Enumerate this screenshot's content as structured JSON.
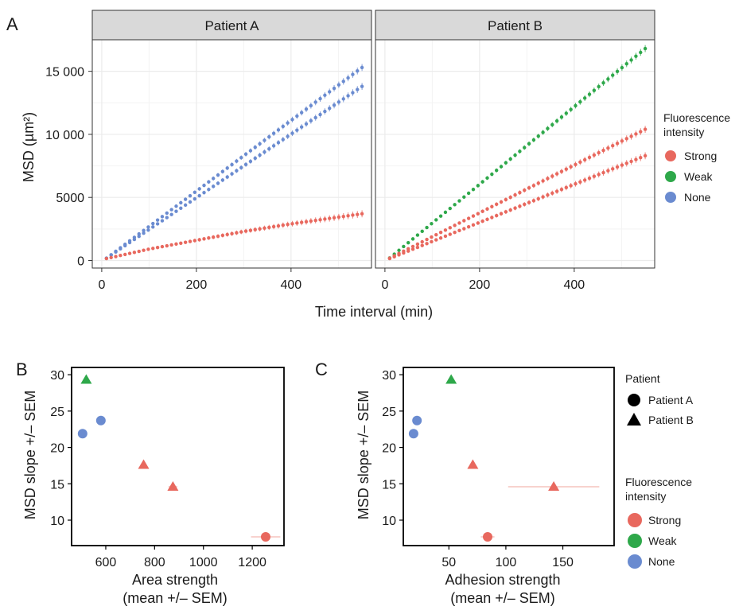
{
  "chart_data": [
    {
      "panel_label": "A",
      "type": "scatter",
      "facets": [
        {
          "strip": "Patient A",
          "series": [
            {
              "intensity": "None",
              "x": [
                10,
                550
              ],
              "y": [
                180,
                15300
              ]
            },
            {
              "intensity": "None",
              "x": [
                10,
                550
              ],
              "y": [
                180,
                13800
              ]
            },
            {
              "intensity": "Strong",
              "x": [
                10,
                100,
                200,
                300,
                400,
                550
              ],
              "y": [
                150,
                900,
                1600,
                2300,
                2900,
                3700
              ]
            }
          ]
        },
        {
          "strip": "Patient B",
          "series": [
            {
              "intensity": "Weak",
              "x": [
                10,
                550
              ],
              "y": [
                200,
                16800
              ]
            },
            {
              "intensity": "Strong",
              "x": [
                10,
                550
              ],
              "y": [
                180,
                10400
              ]
            },
            {
              "intensity": "Strong",
              "x": [
                10,
                550
              ],
              "y": [
                150,
                8300
              ]
            }
          ]
        }
      ],
      "xlabel": "Time interval (min)",
      "ylabel": "MSD (µm²)",
      "xlim": [
        -20,
        570
      ],
      "ylim": [
        -600,
        17500
      ],
      "x_ticks": [
        0,
        200,
        400
      ],
      "y_ticks": [
        0,
        5000,
        10000,
        15000
      ],
      "y_tick_labels": [
        "0",
        "5000",
        "10 000",
        "15 000"
      ],
      "grid": true,
      "legend": {
        "title_line1": "Fluorescence",
        "title_line2": "intensity",
        "entries": [
          "Strong",
          "Weak",
          "None"
        ],
        "placement": "right"
      }
    },
    {
      "panel_label": "B",
      "type": "scatter",
      "xlabel_line1": "Area strength",
      "xlabel_line2": "(mean +/– SEM)",
      "ylabel": "MSD slope +/– SEM",
      "xlim": [
        460,
        1330
      ],
      "ylim": [
        6.5,
        31
      ],
      "x_ticks": [
        600,
        800,
        1000,
        1200
      ],
      "y_ticks": [
        10,
        15,
        20,
        25,
        30
      ],
      "grid": false,
      "points": [
        {
          "x": 520,
          "y": 29.3,
          "xerr": 10,
          "patient": "Patient B",
          "intensity": "Weak"
        },
        {
          "x": 580,
          "y": 23.7,
          "xerr": 0,
          "patient": "Patient A",
          "intensity": "None"
        },
        {
          "x": 505,
          "y": 21.9,
          "xerr": 0,
          "patient": "Patient A",
          "intensity": "None"
        },
        {
          "x": 755,
          "y": 17.6,
          "xerr": 12,
          "patient": "Patient B",
          "intensity": "Strong"
        },
        {
          "x": 875,
          "y": 14.6,
          "xerr": 18,
          "patient": "Patient B",
          "intensity": "Strong"
        },
        {
          "x": 1255,
          "y": 7.7,
          "xerr": 60,
          "patient": "Patient A",
          "intensity": "Strong"
        }
      ]
    },
    {
      "panel_label": "C",
      "type": "scatter",
      "xlabel_line1": "Adhesion strength",
      "xlabel_line2": "(mean +/– SEM)",
      "ylabel": "MSD slope +/– SEM",
      "xlim": [
        10,
        195
      ],
      "ylim": [
        6.5,
        31
      ],
      "x_ticks": [
        50,
        100,
        150
      ],
      "y_ticks": [
        10,
        15,
        20,
        25,
        30
      ],
      "grid": false,
      "points": [
        {
          "x": 52,
          "y": 29.3,
          "xerr": 0,
          "patient": "Patient B",
          "intensity": "Weak"
        },
        {
          "x": 22,
          "y": 23.7,
          "xerr": 0,
          "patient": "Patient A",
          "intensity": "None"
        },
        {
          "x": 19,
          "y": 21.9,
          "xerr": 0,
          "patient": "Patient A",
          "intensity": "None"
        },
        {
          "x": 71,
          "y": 17.6,
          "xerr": 0,
          "patient": "Patient B",
          "intensity": "Strong"
        },
        {
          "x": 142,
          "y": 14.6,
          "xerr": 40,
          "patient": "Patient B",
          "intensity": "Strong"
        },
        {
          "x": 84,
          "y": 7.7,
          "xerr": 6,
          "patient": "Patient A",
          "intensity": "Strong"
        }
      ]
    }
  ],
  "legend_bottom": {
    "patient_title": "Patient",
    "patient_entries": [
      "Patient A",
      "Patient B"
    ],
    "intensity_title_line1": "Fluorescence",
    "intensity_title_line2": "intensity",
    "intensity_entries": [
      "Strong",
      "Weak",
      "None"
    ]
  },
  "colors": {
    "Strong": "#e8685e",
    "Weak": "#2ea84a",
    "None": "#6a8bd0",
    "strip_fill": "#d9d9d9",
    "grid": "#ebebeb"
  }
}
